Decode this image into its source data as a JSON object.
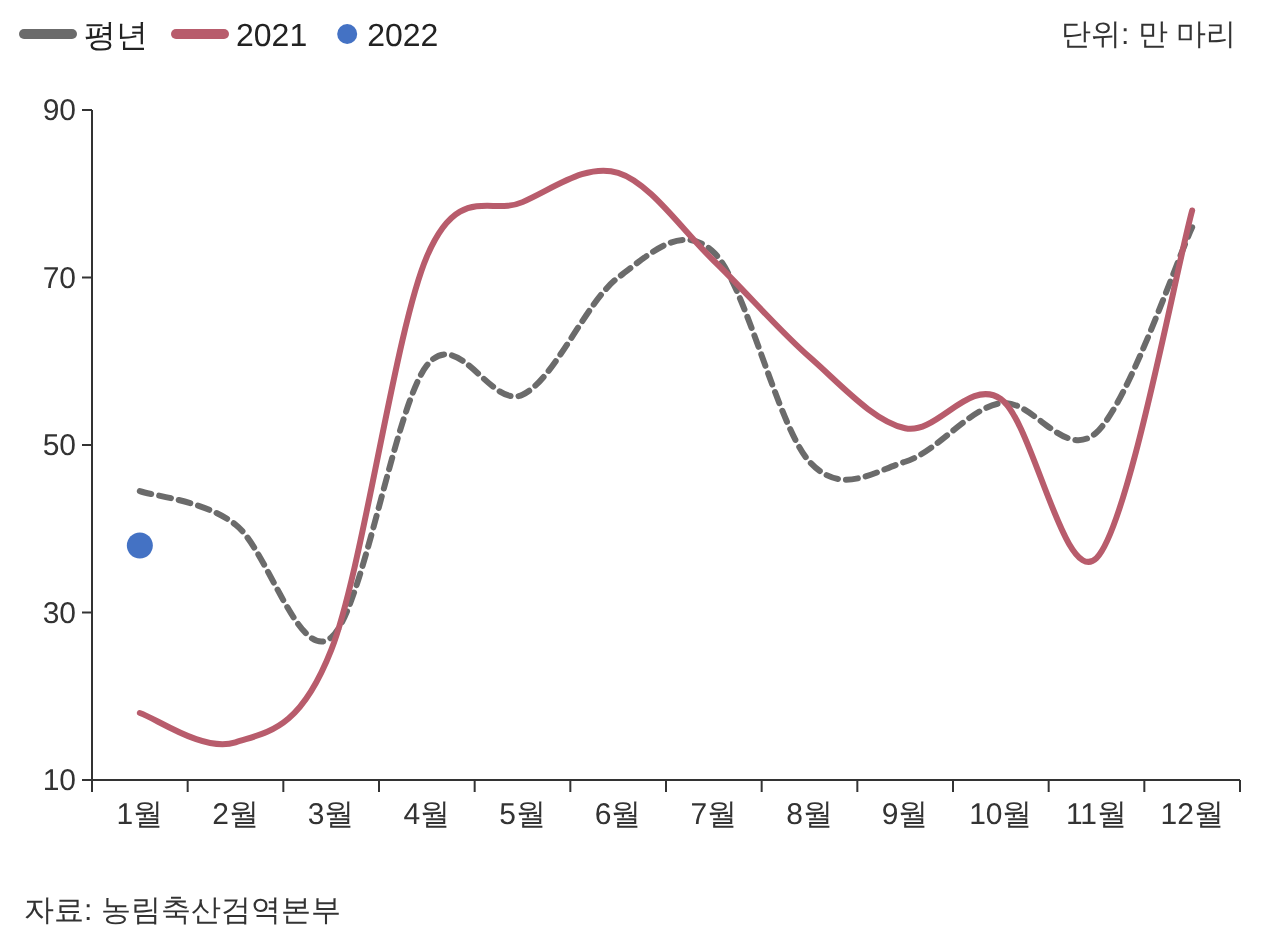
{
  "chart_data": {
    "type": "line",
    "subtitle": "단위: 만 마리",
    "categories": [
      "1월",
      "2월",
      "3월",
      "4월",
      "5월",
      "6월",
      "7월",
      "8월",
      "9월",
      "10월",
      "11월",
      "12월"
    ],
    "series": [
      {
        "name": "평년",
        "color": "#6b6b6b",
        "line_style": "dashed",
        "values": [
          44.5,
          40.5,
          27,
          59.5,
          56,
          70,
          73,
          48,
          48,
          55,
          51.5,
          76
        ]
      },
      {
        "name": "2021",
        "color": "#b85c6c",
        "line_style": "solid",
        "values": [
          18,
          14.5,
          25.5,
          72.5,
          79,
          82.5,
          72,
          60.5,
          52,
          55.5,
          36.5,
          78
        ]
      },
      {
        "name": "2022",
        "type": "scatter",
        "color": "#4472c4",
        "marker": "circle",
        "values": [
          38,
          null,
          null,
          null,
          null,
          null,
          null,
          null,
          null,
          null,
          null,
          null
        ]
      }
    ],
    "ylim": [
      10,
      90
    ],
    "yticks": [
      10,
      30,
      50,
      70,
      90
    ],
    "grid": false,
    "legend": "top left",
    "annotations": [
      "자료: 농림축산검역본부"
    ]
  }
}
